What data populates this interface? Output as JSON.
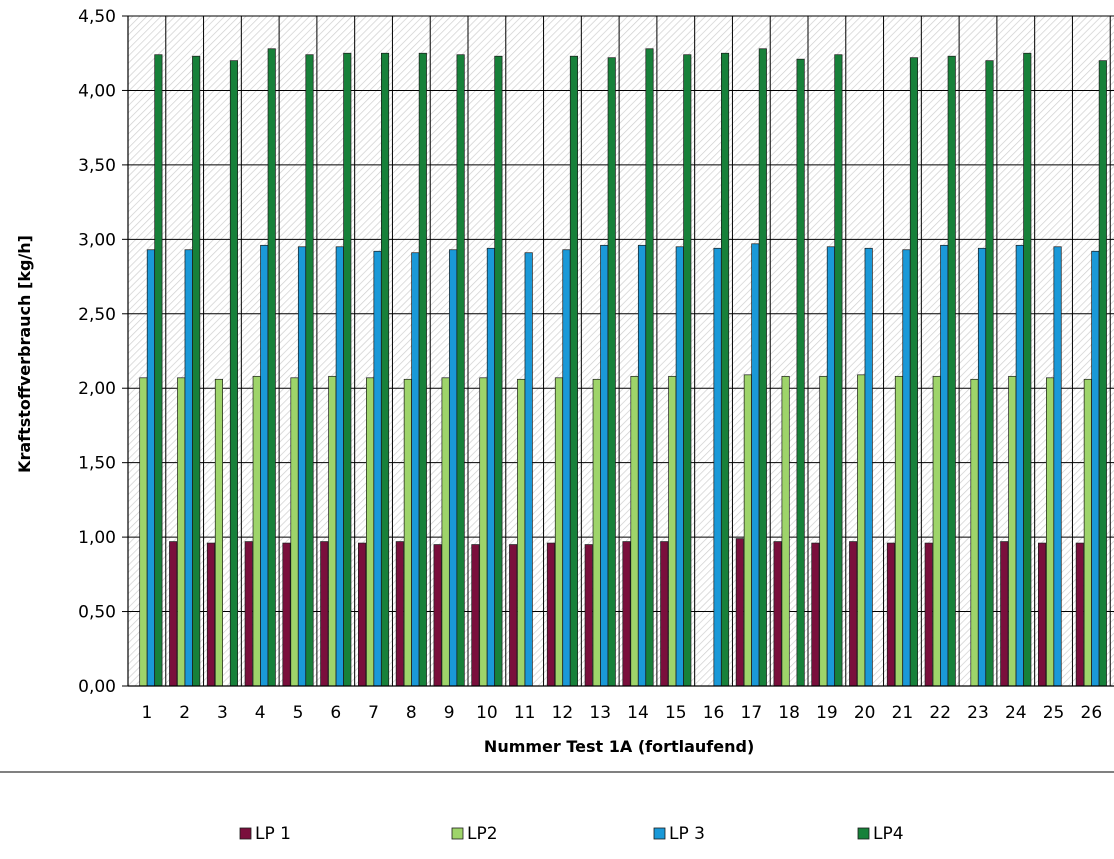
{
  "chart_data": {
    "type": "bar",
    "xlabel": "Nummer Test 1A (fortlaufend)",
    "ylabel": "Kraftstoffverbrauch  [kg/h]",
    "ylim": [
      0,
      4.5
    ],
    "yticks": [
      "0,00",
      "0,50",
      "1,00",
      "1,50",
      "2,00",
      "2,50",
      "3,00",
      "3,50",
      "4,00",
      "4,50"
    ],
    "categories": [
      "1",
      "2",
      "3",
      "4",
      "5",
      "6",
      "7",
      "8",
      "9",
      "10",
      "11",
      "12",
      "13",
      "14",
      "15",
      "16",
      "17",
      "18",
      "19",
      "20",
      "21",
      "22",
      "23",
      "24",
      "25",
      "26"
    ],
    "legend_position": "bottom",
    "grid": true,
    "series": [
      {
        "name": "LP 1",
        "color": "#7a0f3c",
        "values": [
          null,
          0.97,
          0.96,
          0.97,
          0.96,
          0.97,
          0.96,
          0.97,
          0.95,
          0.95,
          0.95,
          0.96,
          0.95,
          0.97,
          0.97,
          null,
          0.99,
          0.97,
          0.96,
          0.97,
          0.96,
          0.96,
          null,
          0.97,
          0.96,
          0.96
        ]
      },
      {
        "name": "LP2",
        "color": "#9ed46a",
        "values": [
          2.07,
          2.07,
          2.06,
          2.08,
          2.07,
          2.08,
          2.07,
          2.06,
          2.07,
          2.07,
          2.06,
          2.07,
          2.06,
          2.08,
          2.08,
          null,
          2.09,
          2.08,
          2.08,
          2.09,
          2.08,
          2.08,
          2.06,
          2.08,
          2.07,
          2.06
        ]
      },
      {
        "name": "LP 3",
        "color": "#1a99d8",
        "values": [
          2.93,
          2.93,
          null,
          2.96,
          2.95,
          2.95,
          2.92,
          2.91,
          2.93,
          2.94,
          2.91,
          2.93,
          2.96,
          2.96,
          2.95,
          2.94,
          2.97,
          null,
          2.95,
          2.94,
          2.93,
          2.96,
          2.94,
          2.96,
          2.95,
          2.92
        ]
      },
      {
        "name": "LP4",
        "color": "#17813a",
        "values": [
          4.24,
          4.23,
          4.2,
          4.28,
          4.24,
          4.25,
          4.25,
          4.25,
          4.24,
          4.23,
          null,
          4.23,
          4.22,
          4.28,
          4.24,
          4.25,
          4.28,
          4.21,
          4.24,
          null,
          4.22,
          4.23,
          4.2,
          4.25,
          null,
          4.2
        ]
      }
    ]
  }
}
